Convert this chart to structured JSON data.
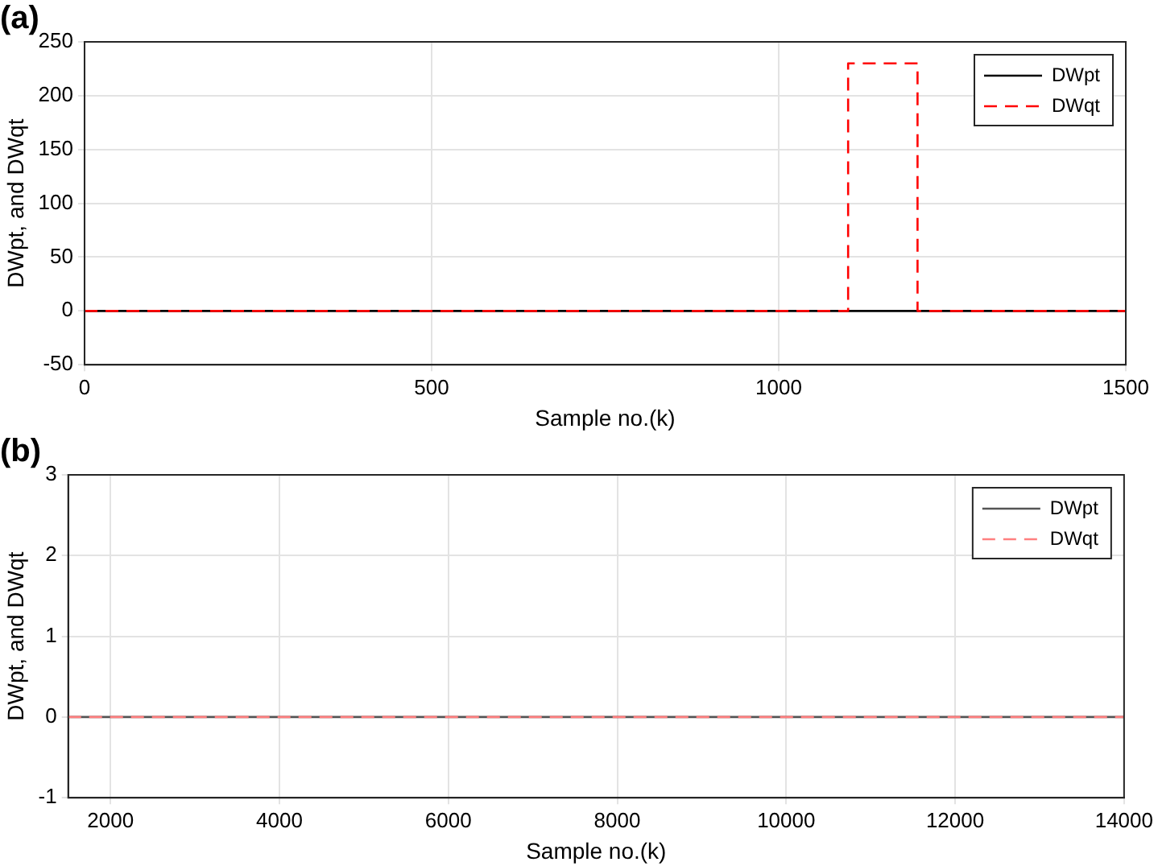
{
  "chart_data": [
    {
      "type": "line",
      "title": "(a)",
      "xlabel": "Sample no.(k)",
      "ylabel": "DWpt, and DWqt",
      "xlim": [
        0,
        1500
      ],
      "xticks": [
        0,
        500,
        1000,
        1500
      ],
      "ylim": [
        -50,
        250
      ],
      "yticks": [
        -50,
        0,
        50,
        100,
        150,
        200,
        250
      ],
      "grid": true,
      "legend": "top right",
      "marker": "none",
      "series": [
        {
          "name": "DWpt",
          "color": "#000000",
          "line_style": "solid",
          "x": [
            0,
            1500
          ],
          "values": [
            0,
            0
          ]
        },
        {
          "name": "DWqt",
          "color": "#ff0000",
          "line_style": "dashed",
          "x": [
            0,
            1100,
            1100,
            1200,
            1200,
            1500
          ],
          "values": [
            0,
            0,
            230,
            230,
            0,
            0
          ]
        }
      ]
    },
    {
      "type": "line",
      "title": "(b)",
      "xlabel": "Sample no.(k)",
      "ylabel": "DWpt, and DWqt",
      "xlim": [
        1500,
        14000
      ],
      "xticks": [
        2000,
        4000,
        6000,
        8000,
        10000,
        12000,
        14000
      ],
      "ylim": [
        -1,
        3
      ],
      "yticks": [
        -1,
        0,
        1,
        2,
        3
      ],
      "grid": true,
      "legend": "top right",
      "marker": "none",
      "series": [
        {
          "name": "DWpt",
          "color": "#555555",
          "line_style": "solid",
          "x": [
            1500,
            14000
          ],
          "values": [
            0,
            0
          ]
        },
        {
          "name": "DWqt",
          "color": "#ff8080",
          "line_style": "dashed",
          "x": [
            1500,
            14000
          ],
          "values": [
            0,
            0
          ]
        }
      ]
    }
  ]
}
